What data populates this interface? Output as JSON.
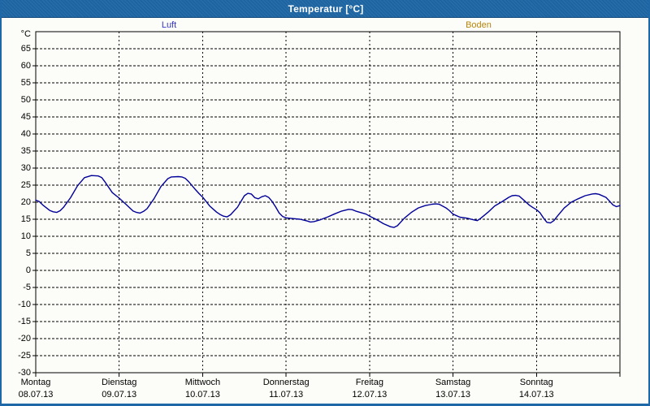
{
  "window": {
    "title": "Temperatur [°C]",
    "titlebar_color": "#1e68a7",
    "border_color": "#1e68a7"
  },
  "legend": {
    "items": [
      {
        "label": "Luft",
        "color": "#3333cc"
      },
      {
        "label": "Boden",
        "color": "#b8860b"
      }
    ]
  },
  "axes": {
    "y_unit": "°C",
    "y_tick_labels": [
      65,
      60,
      55,
      50,
      45,
      40,
      35,
      30,
      25,
      20,
      15,
      10,
      5,
      0,
      -5,
      -10,
      -15,
      -20,
      -25,
      -30
    ],
    "y_min": -30,
    "y_max": 70,
    "y_grid_step": 5,
    "days": [
      {
        "name": "Montag",
        "date": "08.07.13"
      },
      {
        "name": "Dienstag",
        "date": "09.07.13"
      },
      {
        "name": "Mittwoch",
        "date": "10.07.13"
      },
      {
        "name": "Donnerstag",
        "date": "11.07.13"
      },
      {
        "name": "Freitag",
        "date": "12.07.13"
      },
      {
        "name": "Samstag",
        "date": "13.07.13"
      },
      {
        "name": "Sonntag",
        "date": "14.07.13"
      }
    ]
  },
  "chart_data": {
    "type": "line",
    "title": "Temperatur [°C]",
    "ylabel": "°C",
    "ylim": [
      -30,
      70
    ],
    "x_unit": "hours since Montag 08.07.13 00:00",
    "xlim": [
      0,
      168
    ],
    "grid": "dashed",
    "legend_position": "top",
    "series": [
      {
        "name": "Luft",
        "color": "#000099",
        "points": [
          [
            0,
            20.6
          ],
          [
            1,
            20.2
          ],
          [
            2,
            19.2
          ],
          [
            4,
            17.6
          ],
          [
            5,
            17.2
          ],
          [
            6,
            17.0
          ],
          [
            7,
            17.5
          ],
          [
            8,
            18.5
          ],
          [
            10,
            21.3
          ],
          [
            12,
            24.8
          ],
          [
            14,
            27.2
          ],
          [
            16,
            27.8
          ],
          [
            18,
            27.7
          ],
          [
            19,
            27.2
          ],
          [
            20,
            25.8
          ],
          [
            22,
            22.8
          ],
          [
            24,
            21.2
          ],
          [
            26,
            19.3
          ],
          [
            28,
            17.4
          ],
          [
            29,
            17.0
          ],
          [
            30,
            16.8
          ],
          [
            31,
            17.3
          ],
          [
            32,
            18.1
          ],
          [
            34,
            21.0
          ],
          [
            36,
            24.6
          ],
          [
            38,
            26.9
          ],
          [
            39,
            27.4
          ],
          [
            41,
            27.5
          ],
          [
            42,
            27.4
          ],
          [
            43,
            27.0
          ],
          [
            44,
            26.0
          ],
          [
            46,
            23.6
          ],
          [
            47,
            22.5
          ],
          [
            48,
            21.5
          ],
          [
            50,
            18.9
          ],
          [
            52,
            17.1
          ],
          [
            53,
            16.4
          ],
          [
            54,
            15.9
          ],
          [
            55,
            15.7
          ],
          [
            56,
            16.3
          ],
          [
            58,
            18.5
          ],
          [
            60,
            21.9
          ],
          [
            61,
            22.6
          ],
          [
            62,
            22.4
          ],
          [
            63,
            21.3
          ],
          [
            64,
            21.0
          ],
          [
            65,
            21.6
          ],
          [
            66,
            21.9
          ],
          [
            67,
            21.4
          ],
          [
            68,
            20.2
          ],
          [
            69,
            18.6
          ],
          [
            70,
            16.8
          ],
          [
            71,
            15.8
          ],
          [
            72,
            15.4
          ],
          [
            74,
            15.2
          ],
          [
            76,
            15.0
          ],
          [
            78,
            14.5
          ],
          [
            79,
            14.2
          ],
          [
            80,
            14.3
          ],
          [
            82,
            14.9
          ],
          [
            84,
            15.7
          ],
          [
            86,
            16.6
          ],
          [
            88,
            17.4
          ],
          [
            90,
            17.9
          ],
          [
            91,
            17.8
          ],
          [
            92,
            17.4
          ],
          [
            94,
            16.8
          ],
          [
            95,
            16.5
          ],
          [
            96,
            15.9
          ],
          [
            98,
            14.9
          ],
          [
            100,
            13.7
          ],
          [
            102,
            12.8
          ],
          [
            103,
            12.6
          ],
          [
            104,
            13.1
          ],
          [
            106,
            15.3
          ],
          [
            108,
            17.0
          ],
          [
            110,
            18.3
          ],
          [
            112,
            19.0
          ],
          [
            114,
            19.4
          ],
          [
            115,
            19.5
          ],
          [
            116,
            19.4
          ],
          [
            118,
            18.3
          ],
          [
            119,
            17.5
          ],
          [
            120,
            16.5
          ],
          [
            122,
            15.6
          ],
          [
            124,
            15.3
          ],
          [
            126,
            14.8
          ],
          [
            127,
            14.6
          ],
          [
            128,
            15.3
          ],
          [
            130,
            17.0
          ],
          [
            132,
            18.9
          ],
          [
            134,
            20.1
          ],
          [
            136,
            21.4
          ],
          [
            137,
            21.9
          ],
          [
            138,
            22.0
          ],
          [
            139,
            21.8
          ],
          [
            140,
            20.9
          ],
          [
            142,
            19.1
          ],
          [
            143,
            18.4
          ],
          [
            144,
            17.8
          ],
          [
            145,
            16.9
          ],
          [
            146,
            15.4
          ],
          [
            147,
            14.1
          ],
          [
            148,
            13.9
          ],
          [
            149,
            14.6
          ],
          [
            150,
            15.9
          ],
          [
            152,
            18.3
          ],
          [
            154,
            20.0
          ],
          [
            156,
            21.0
          ],
          [
            158,
            21.9
          ],
          [
            160,
            22.4
          ],
          [
            161,
            22.5
          ],
          [
            162,
            22.3
          ],
          [
            164,
            21.4
          ],
          [
            165,
            20.3
          ],
          [
            166,
            19.2
          ],
          [
            167,
            18.7
          ],
          [
            168,
            19.0
          ]
        ]
      },
      {
        "name": "Boden",
        "color": "#b8860b",
        "points": []
      }
    ]
  }
}
